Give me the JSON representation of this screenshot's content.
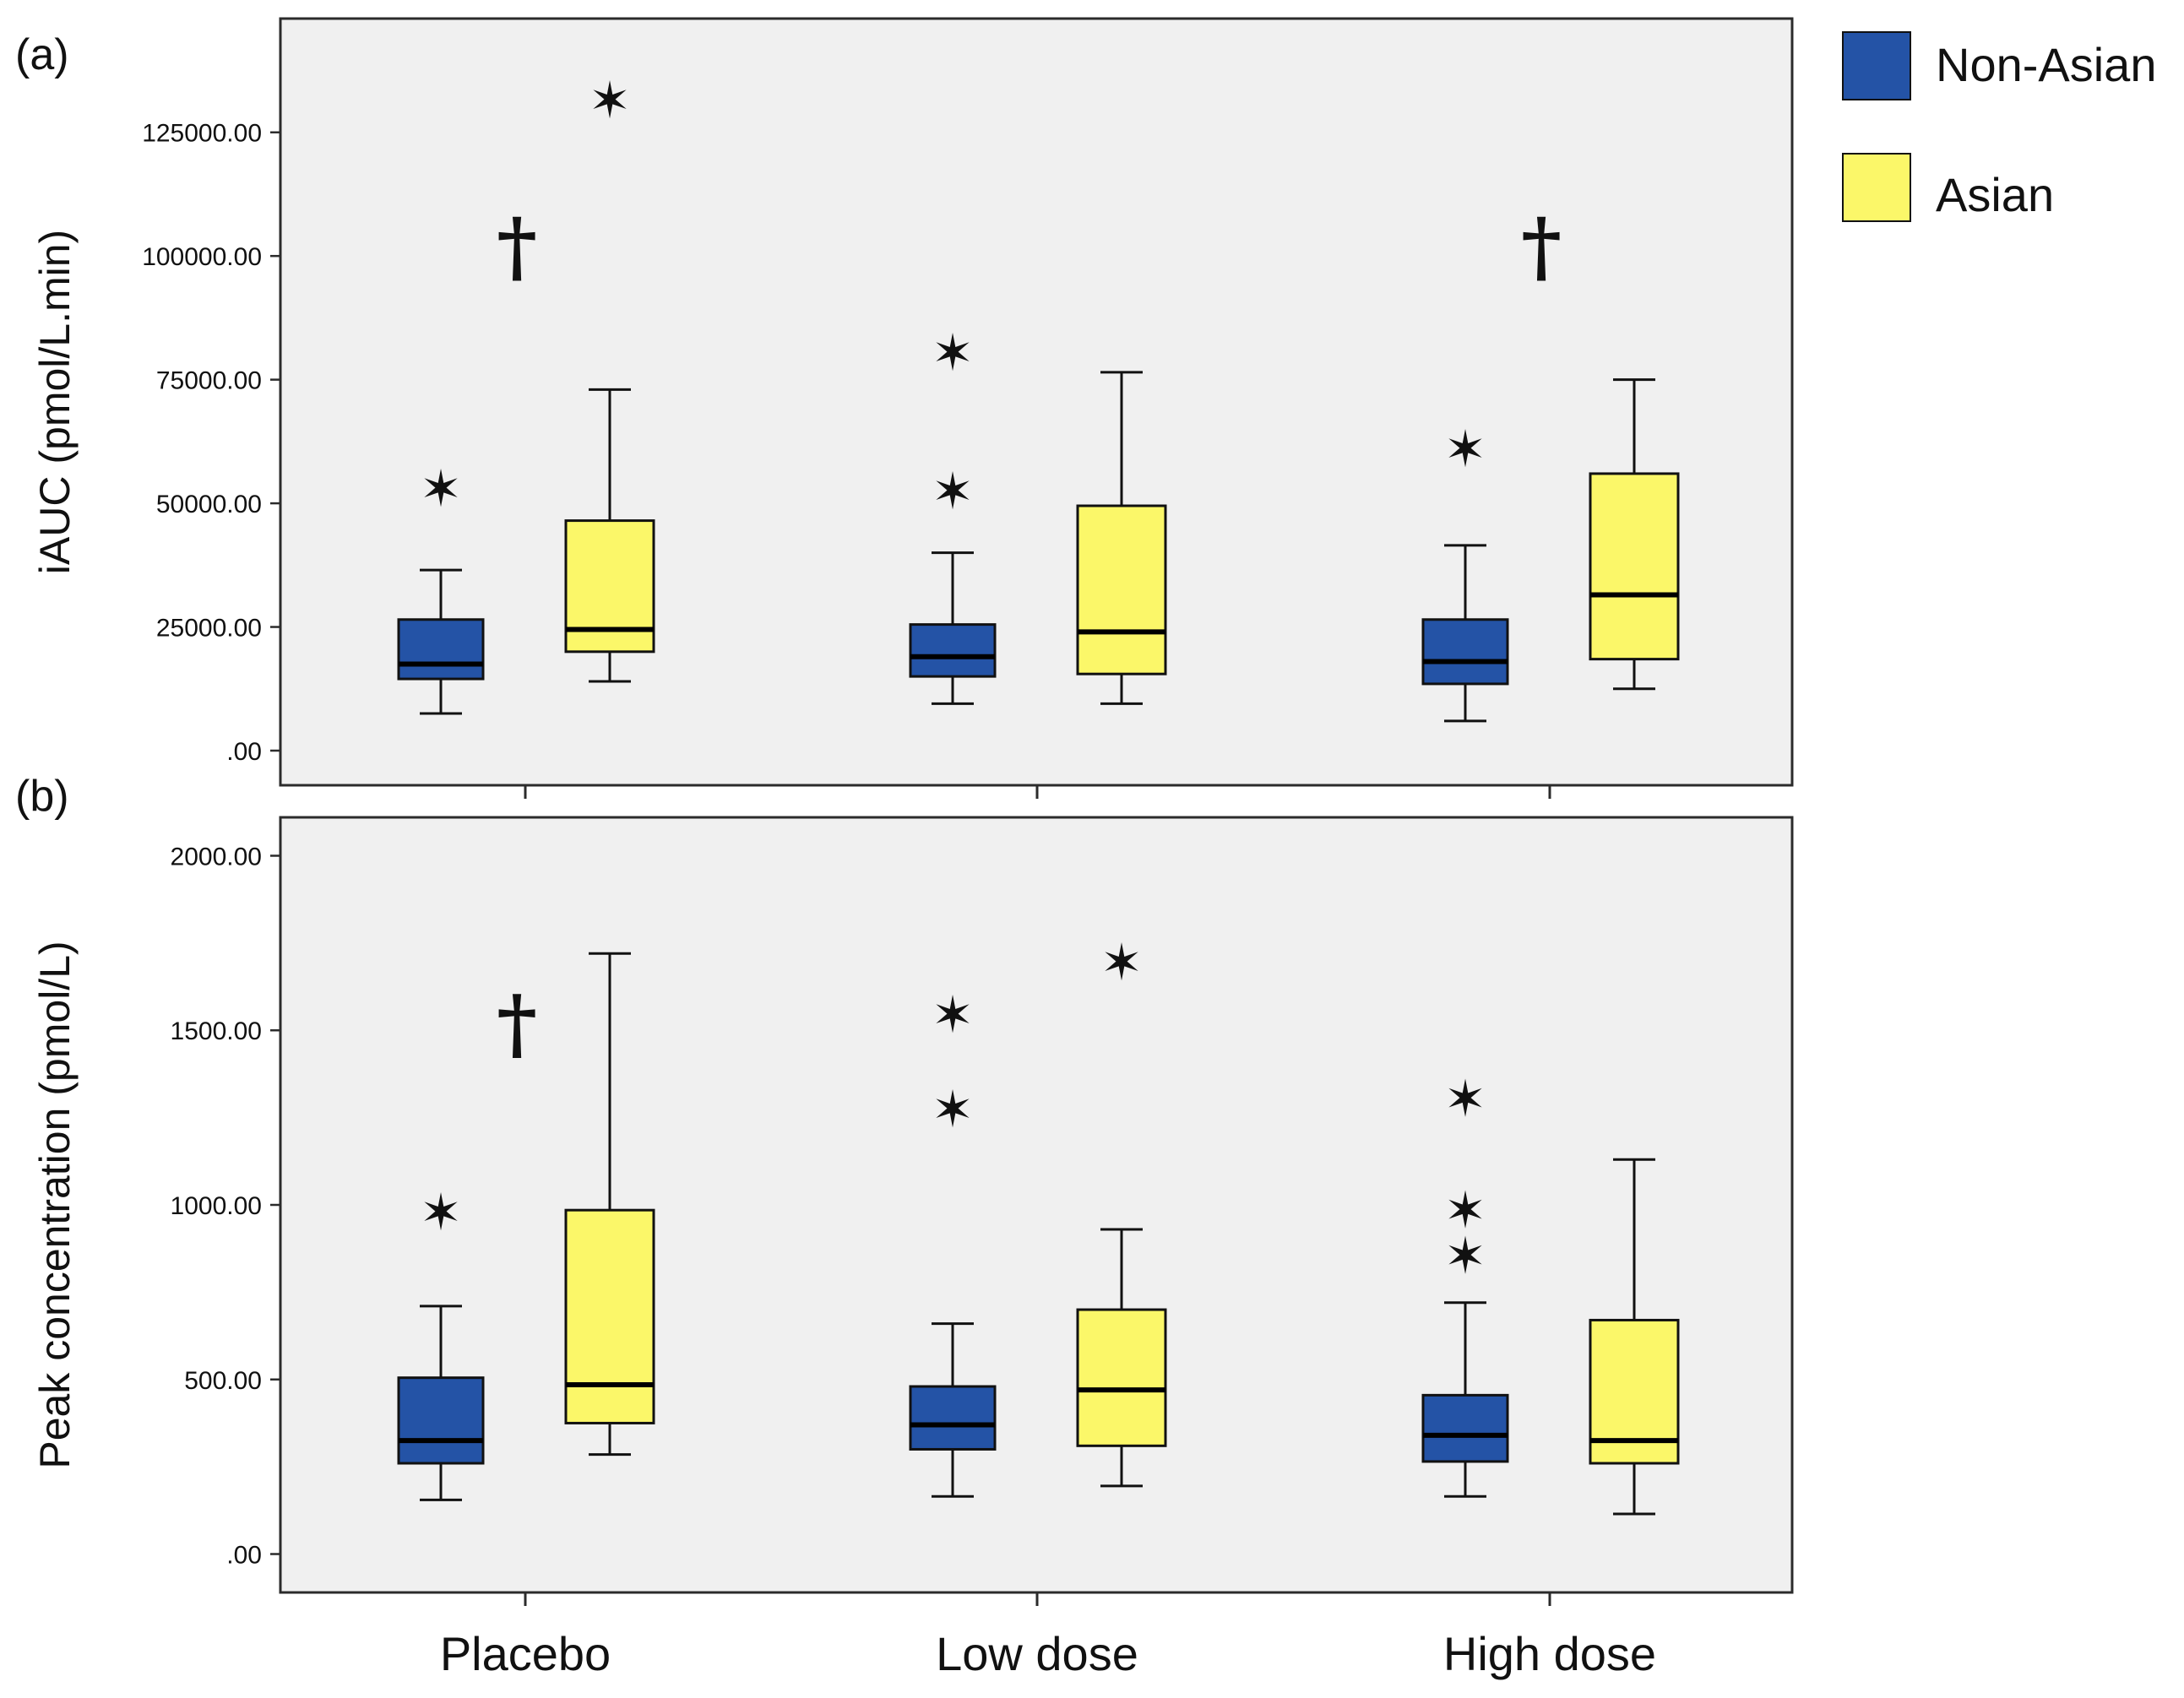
{
  "colors": {
    "non_asian": "#2453a6",
    "asian": "#fbf769",
    "panel_bg": "#f0f0f0",
    "frame": "#2b2b2b"
  },
  "symbols": {
    "outlier": "✶",
    "dagger": "†"
  },
  "legend": [
    {
      "key": "non_asian",
      "label": "Non-Asian",
      "color": "#2453a6"
    },
    {
      "key": "asian",
      "label": "Asian",
      "color": "#fbf769"
    }
  ],
  "chart_data": [
    {
      "type": "box",
      "panel_label": "(a)",
      "ylabel": "iAUC (pmol/L.min)",
      "ylim": [
        -7000,
        148000
      ],
      "yticks": [
        0,
        25000,
        50000,
        75000,
        100000,
        125000
      ],
      "ytick_labels": [
        ".00",
        "25000.00",
        "50000.00",
        "75000.00",
        "100000.00",
        "125000.00"
      ],
      "categories": [
        "Placebo",
        "Low dose",
        "High dose"
      ],
      "series": [
        {
          "name": "Non-Asian",
          "boxes": [
            {
              "min": 7500,
              "q1": 14500,
              "median": 17500,
              "q3": 26500,
              "max": 36500,
              "outliers": [
                53000
              ]
            },
            {
              "min": 9500,
              "q1": 15000,
              "median": 19000,
              "q3": 25500,
              "max": 40000,
              "outliers": [
                52500,
                80500
              ]
            },
            {
              "min": 6000,
              "q1": 13500,
              "median": 18000,
              "q3": 26500,
              "max": 41500,
              "outliers": [
                61000
              ]
            }
          ]
        },
        {
          "name": "Asian",
          "boxes": [
            {
              "min": 14000,
              "q1": 20000,
              "median": 24500,
              "q3": 46500,
              "max": 73000,
              "outliers": [
                131500
              ]
            },
            {
              "min": 9500,
              "q1": 15500,
              "median": 24000,
              "q3": 49500,
              "max": 76500,
              "outliers": []
            },
            {
              "min": 12500,
              "q1": 18500,
              "median": 31500,
              "q3": 56000,
              "max": 75000,
              "outliers": []
            }
          ]
        }
      ],
      "annotations": [
        {
          "category": "Placebo",
          "symbol": "†",
          "y": 102000
        },
        {
          "category": "High dose",
          "symbol": "†",
          "y": 102000
        }
      ]
    },
    {
      "type": "box",
      "panel_label": "(b)",
      "ylabel": "Peak concentration (pmol/L)",
      "ylim": [
        -110,
        2110
      ],
      "yticks": [
        0,
        500,
        1000,
        1500,
        2000
      ],
      "ytick_labels": [
        ".00",
        "500.00",
        "1000.00",
        "1500.00",
        "2000.00"
      ],
      "categories": [
        "Placebo",
        "Low dose",
        "High dose"
      ],
      "series": [
        {
          "name": "Non-Asian",
          "boxes": [
            {
              "min": 155,
              "q1": 260,
              "median": 325,
              "q3": 505,
              "max": 710,
              "outliers": [
                980
              ]
            },
            {
              "min": 165,
              "q1": 300,
              "median": 370,
              "q3": 480,
              "max": 660,
              "outliers": [
                1275,
                1545
              ]
            },
            {
              "min": 165,
              "q1": 265,
              "median": 340,
              "q3": 455,
              "max": 720,
              "outliers": [
                855,
                985,
                1305
              ]
            }
          ]
        },
        {
          "name": "Asian",
          "boxes": [
            {
              "min": 285,
              "q1": 375,
              "median": 485,
              "q3": 985,
              "max": 1720,
              "outliers": []
            },
            {
              "min": 195,
              "q1": 310,
              "median": 470,
              "q3": 700,
              "max": 930,
              "outliers": [
                1695
              ]
            },
            {
              "min": 115,
              "q1": 260,
              "median": 325,
              "q3": 670,
              "max": 1130,
              "outliers": []
            }
          ]
        }
      ],
      "annotations": [
        {
          "category": "Placebo",
          "symbol": "†",
          "y": 1520
        }
      ]
    }
  ]
}
